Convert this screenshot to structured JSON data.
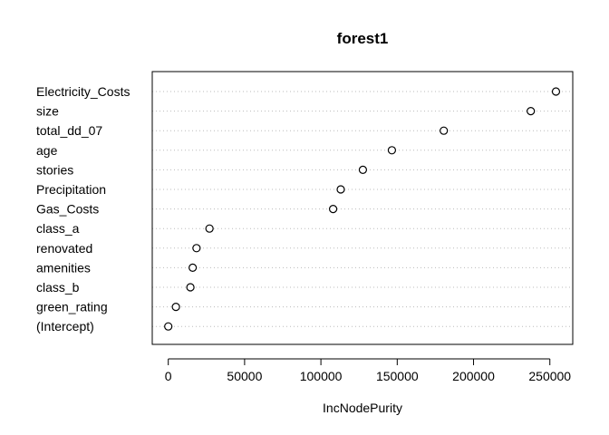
{
  "chart_data": {
    "type": "scatter",
    "title": "forest1",
    "xlabel": "IncNodePurity",
    "ylabel": "",
    "categories": [
      "Electricity_Costs",
      "size",
      "total_dd_07",
      "age",
      "stories",
      "Precipitation",
      "Gas_Costs",
      "class_a",
      "renovated",
      "amenities",
      "class_b",
      "green_rating",
      "(Intercept)"
    ],
    "values": [
      254000,
      237500,
      180500,
      146500,
      127500,
      113000,
      108000,
      27000,
      18500,
      16000,
      14500,
      5000,
      0
    ],
    "xlim": [
      -10500,
      265000
    ],
    "xticks": [
      0,
      50000,
      100000,
      150000,
      200000,
      250000
    ],
    "xtick_labels": [
      "0",
      "50000",
      "100000",
      "150000",
      "200000",
      "250000"
    ],
    "grid": "dotted horizontal",
    "colors": {
      "points": "#000000",
      "grid": "#bbbbbb",
      "frame": "#000000"
    }
  }
}
